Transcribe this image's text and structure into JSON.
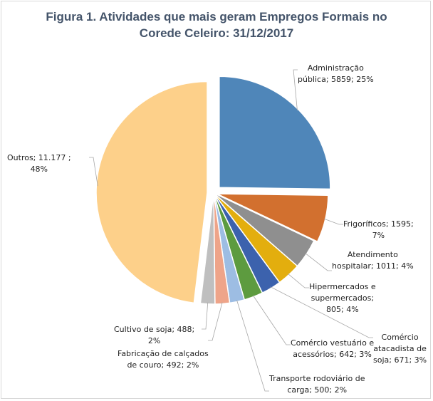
{
  "chart_data": {
    "type": "pie",
    "title": "Figura 1. Atividades que mais geram Empregos Formais no Corede Celeiro: 31/12/2017",
    "title_lines": [
      "Figura 1. Atividades que mais geram Empregos Formais no",
      "Corede Celeiro: 31/12/2017"
    ],
    "slices": [
      {
        "name": "Administração pública",
        "value": 5859,
        "percent": "25%",
        "color": "#4f86b9",
        "label_lines": [
          "Administração",
          "pública; 5859; 25%"
        ],
        "exploded": true
      },
      {
        "name": "Frigoríficos",
        "value": 1595,
        "percent": "7%",
        "color": "#d2702f",
        "label_lines": [
          "Frigoríficos; 1595;",
          "7%"
        ],
        "exploded": true
      },
      {
        "name": "Atendimento hospitalar",
        "value": 1011,
        "percent": "4%",
        "color": "#8f8f8f",
        "label_lines": [
          "Atendimento",
          "hospitalar; 1011; 4%"
        ],
        "exploded": false
      },
      {
        "name": "Hipermercados e supermercados",
        "value": 805,
        "percent": "4%",
        "color": "#e3ae0e",
        "label_lines": [
          "Hipermercados e",
          "supermercados;",
          "805; 4%"
        ],
        "exploded": false
      },
      {
        "name": "Comércio atacadista de soja",
        "value": 671,
        "percent": "3%",
        "color": "#3c62ad",
        "label_lines": [
          "Comércio",
          "atacadista de",
          "soja; 671; 3%"
        ],
        "exploded": false
      },
      {
        "name": "Comércio vestuário e acessórios",
        "value": 642,
        "percent": "3%",
        "color": "#5d9b3f",
        "label_lines": [
          "Comércio vestuário e",
          "acessórios; 642; 3%"
        ],
        "exploded": false
      },
      {
        "name": "Transporte rodoviário de carga",
        "value": 500,
        "percent": "2%",
        "color": "#9dbde3",
        "label_lines": [
          "Transporte rodoviário de",
          "carga; 500; 2%"
        ],
        "exploded": false
      },
      {
        "name": "Fabricação de calçados de couro",
        "value": 492,
        "percent": "2%",
        "color": "#eea489",
        "label_lines": [
          "Fabricação de calçados",
          "de couro; 492; 2%"
        ],
        "exploded": false
      },
      {
        "name": "Cultivo de soja",
        "value": 488,
        "percent": "2%",
        "color": "#bfbfbf",
        "label_lines": [
          "Cultivo de soja; 488;",
          "2%"
        ],
        "exploded": false
      },
      {
        "name": "Outros",
        "value": 11177,
        "value_label": "11.177",
        "percent": "48%",
        "color": "#fdd08a",
        "label_lines": [
          "Outros;  11.177 ;",
          "48%"
        ],
        "exploded": true
      }
    ],
    "legend": "none",
    "start_angle": "top",
    "direction": "clockwise"
  },
  "colors": {
    "title": "#44546a",
    "leader": "#a6a6a6",
    "border": "#d9d9d9"
  }
}
